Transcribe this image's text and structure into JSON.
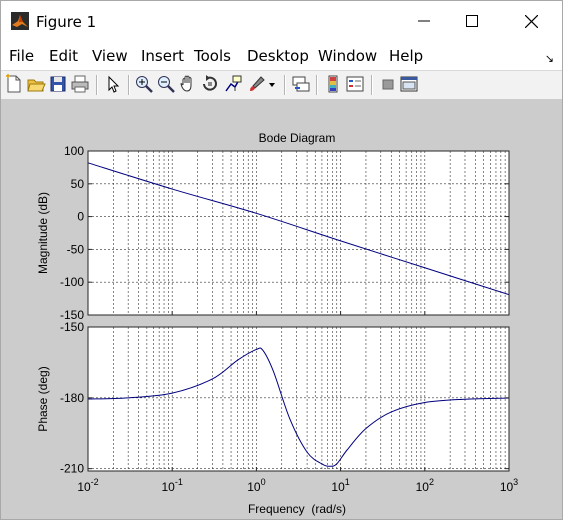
{
  "window": {
    "title": "Figure 1"
  },
  "menu": {
    "items": [
      "File",
      "Edit",
      "View",
      "Insert",
      "Tools",
      "Desktop",
      "Window",
      "Help"
    ],
    "corner_glyph": "↘"
  },
  "toolbar": {
    "buttons": [
      "new-figure-icon",
      "open-file-icon",
      "save-icon",
      "print-icon",
      "edit-plot-arrow-icon",
      "zoom-in-icon",
      "zoom-out-icon",
      "pan-hand-icon",
      "rotate-3d-icon",
      "data-cursor-icon",
      "brush-icon",
      "brush-dropdown-icon",
      "link-plot-icon",
      "insert-colorbar-icon",
      "insert-legend-icon",
      "hide-plot-tools-icon",
      "show-plot-tools-icon"
    ]
  },
  "colors": {
    "figure_background": "#cccccc",
    "axes_background": "#ffffff",
    "curve": "#00007f",
    "grid": "#333333"
  },
  "chart_data": {
    "type": "line",
    "title": "Bode Diagram",
    "xlabel": "Frequency  (rad/s)",
    "xscale": "log",
    "xlim": [
      0.01,
      1000
    ],
    "x_ticks": [
      {
        "base": "10",
        "exp": "-2"
      },
      {
        "base": "10",
        "exp": "-1"
      },
      {
        "base": "10",
        "exp": "0"
      },
      {
        "base": "10",
        "exp": "1"
      },
      {
        "base": "10",
        "exp": "2"
      },
      {
        "base": "10",
        "exp": "3"
      }
    ],
    "grid": true,
    "panels": [
      {
        "ylabel": "Magnitude (dB)",
        "ylim": [
          -150,
          100
        ],
        "yticks": [
          "100",
          "50",
          "0",
          "-50",
          "-100",
          "-150"
        ],
        "x": [
          0.01,
          0.1,
          1,
          10,
          100,
          1000
        ],
        "y": [
          82,
          42,
          5,
          -37,
          -78,
          -119
        ]
      },
      {
        "ylabel": "Phase (deg)",
        "ylim": [
          -211,
          -150
        ],
        "yticks": [
          "-150",
          "-180",
          "-210"
        ],
        "x": [
          0.01,
          0.03,
          0.1,
          0.3,
          0.6,
          1.0,
          1.2,
          1.6,
          2.5,
          4,
          6,
          7.5,
          9,
          12,
          20,
          40,
          100,
          300,
          1000
        ],
        "y": [
          -180.5,
          -180,
          -178,
          -172,
          -164,
          -159.5,
          -160,
          -169,
          -189,
          -203,
          -208,
          -209,
          -208,
          -202,
          -193,
          -186,
          -182,
          -180.6,
          -180.1
        ]
      }
    ]
  }
}
